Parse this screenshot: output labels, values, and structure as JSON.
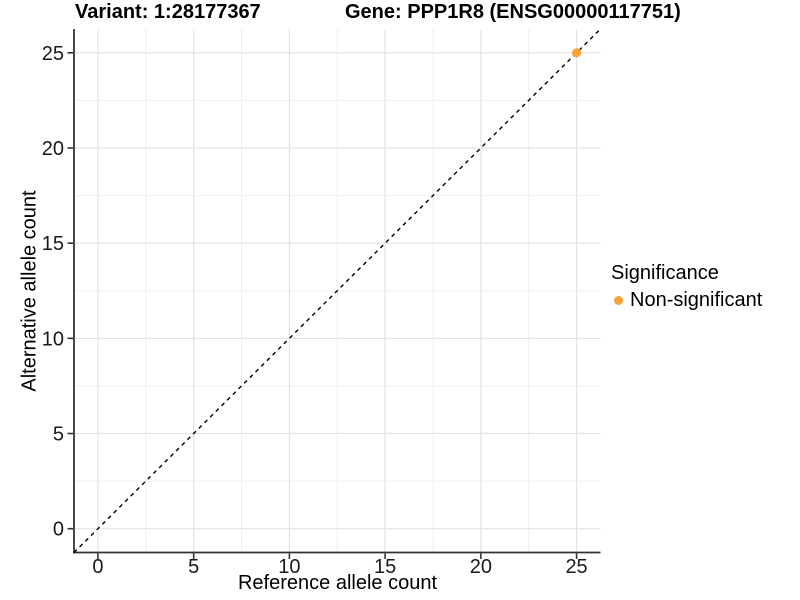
{
  "figure": {
    "title_left": "Variant: 1:28177367",
    "title_right": "Gene: PPP1R8 (ENSG00000117751)"
  },
  "chart_data": {
    "type": "scatter",
    "title": "Variant: 1:28177367 / Gene: PPP1R8 (ENSG00000117751)",
    "xlabel": "Reference allele count",
    "ylabel": "Alternative allele count",
    "xlim": [
      -1.25,
      26.25
    ],
    "ylim": [
      -1.25,
      26.25
    ],
    "xticks": [
      0,
      5,
      10,
      15,
      20,
      25
    ],
    "yticks": [
      0,
      5,
      10,
      15,
      20,
      25
    ],
    "minor_ticks_x": [
      2.5,
      7.5,
      12.5,
      17.5,
      22.5
    ],
    "minor_ticks_y": [
      2.5,
      7.5,
      12.5,
      17.5,
      22.5
    ],
    "grid": "major+minor",
    "reference_line": {
      "kind": "abline",
      "slope": 1,
      "intercept": 0,
      "linestyle": "dashed",
      "color": "#000000"
    },
    "series": [
      {
        "name": "Non-significant",
        "color": "#F8A43A",
        "points": [
          {
            "x": 25,
            "y": 25
          }
        ]
      }
    ],
    "legend": {
      "title": "Significance",
      "position": "right",
      "entries": [
        {
          "label": "Non-significant",
          "color": "#F8A43A"
        }
      ]
    },
    "colors": {
      "background": "#ffffff",
      "grid_major": "#e3e3e3",
      "grid_minor": "#efefef",
      "axis_line": "#333333",
      "tick_mark": "#333333",
      "tick_label": "#1a1a1a"
    }
  }
}
